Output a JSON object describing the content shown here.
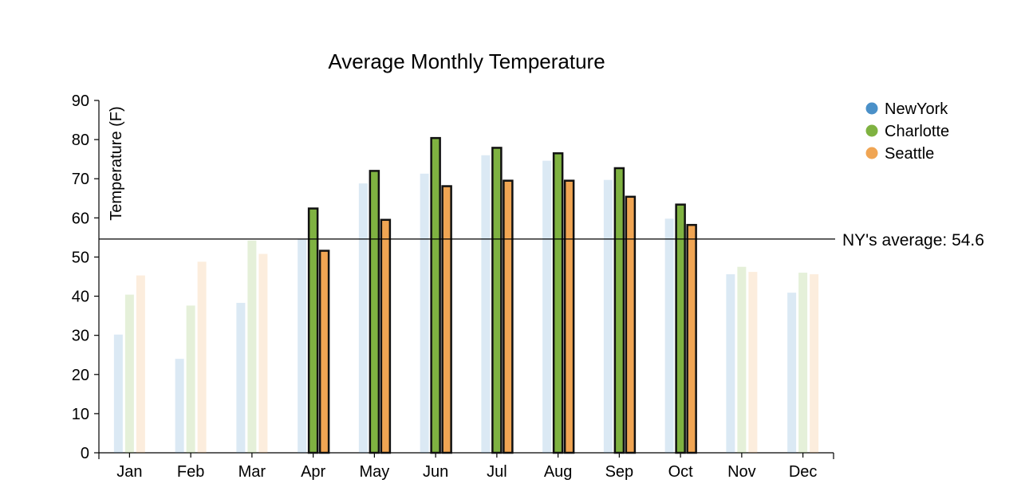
{
  "chart_data": {
    "type": "bar",
    "title": "Average Monthly Temperature",
    "xlabel": "",
    "ylabel": "Temperature (F)",
    "ylim": [
      0,
      90
    ],
    "yticks": [
      0,
      10,
      20,
      30,
      40,
      50,
      60,
      70,
      80,
      90
    ],
    "categories": [
      "Jan",
      "Feb",
      "Mar",
      "Apr",
      "May",
      "Jun",
      "Jul",
      "Aug",
      "Sep",
      "Oct",
      "Nov",
      "Dec"
    ],
    "series": [
      {
        "name": "NewYork",
        "color": "#4a90c8",
        "values": [
          30.2,
          24.0,
          38.3,
          54.5,
          68.8,
          71.3,
          76.0,
          74.6,
          69.7,
          59.8,
          45.6,
          40.9
        ]
      },
      {
        "name": "Charlotte",
        "color": "#7fb241",
        "values": [
          40.4,
          37.6,
          54.2,
          62.4,
          72.0,
          80.4,
          77.9,
          76.5,
          72.7,
          63.4,
          47.5,
          46.0
        ]
      },
      {
        "name": "Seattle",
        "color": "#f0a553",
        "values": [
          45.3,
          48.8,
          50.8,
          51.6,
          59.5,
          68.1,
          69.5,
          69.5,
          65.4,
          58.2,
          46.2,
          45.6
        ]
      }
    ],
    "highlighted_categories": [
      "Apr",
      "May",
      "Jun",
      "Jul",
      "Aug",
      "Sep",
      "Oct"
    ],
    "reference_line": {
      "value": 54.6,
      "label": "NY's average: 54.6"
    },
    "legend_position": "top-right",
    "grid": false
  }
}
